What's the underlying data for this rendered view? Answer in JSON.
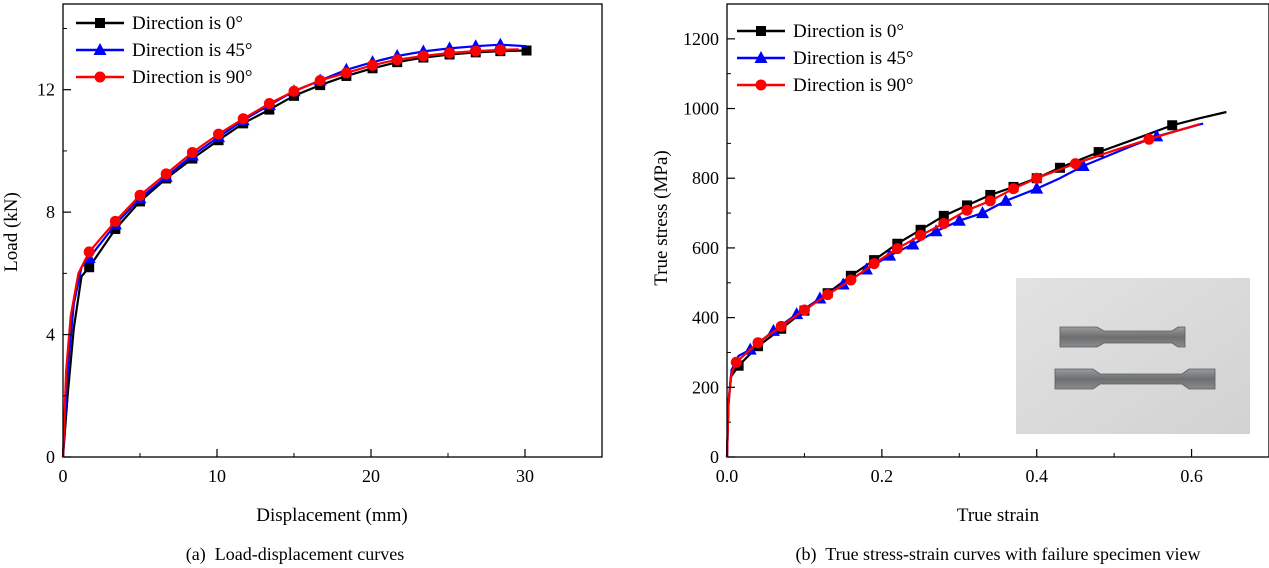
{
  "chart_data": [
    {
      "type": "line",
      "caption": "(a)  Load-displacement curves",
      "xlabel": "Displacement (mm)",
      "ylabel": "Load (kN)",
      "xlim": [
        0,
        35
      ],
      "ylim": [
        0,
        14.8
      ],
      "xticks": [
        0,
        10,
        20,
        30
      ],
      "yticks": [
        0,
        4,
        8,
        12
      ],
      "legend_position": "top-left",
      "series": [
        {
          "name": "Direction is 0°",
          "color": "#000000",
          "marker": "square",
          "x": [
            0,
            0.3,
            0.7,
            1.2,
            1.7,
            3.4,
            5.0,
            6.7,
            8.4,
            10.1,
            11.7,
            13.4,
            15.0,
            16.7,
            18.4,
            20.1,
            21.7,
            23.4,
            25.1,
            26.8,
            28.4,
            30.1
          ],
          "y": [
            0,
            2.0,
            4.2,
            5.9,
            6.2,
            7.45,
            8.35,
            9.1,
            9.75,
            10.35,
            10.9,
            11.35,
            11.8,
            12.15,
            12.45,
            12.7,
            12.9,
            13.05,
            13.15,
            13.22,
            13.26,
            13.28
          ],
          "marker_x": [
            1.7,
            3.4,
            5.0,
            6.7,
            8.4,
            10.1,
            11.7,
            13.4,
            15.0,
            16.7,
            18.4,
            20.1,
            21.7,
            23.4,
            25.1,
            26.8,
            28.4,
            30.1
          ],
          "marker_y": [
            6.2,
            7.45,
            8.35,
            9.1,
            9.75,
            10.35,
            10.9,
            11.35,
            11.8,
            12.15,
            12.45,
            12.7,
            12.9,
            13.05,
            13.15,
            13.22,
            13.26,
            13.28
          ]
        },
        {
          "name": "Direction is 45°",
          "color": "#0000ff",
          "marker": "triangle",
          "x": [
            0,
            0.3,
            0.7,
            1.2,
            1.7,
            3.4,
            5.0,
            6.7,
            8.4,
            10.1,
            11.7,
            13.4,
            15.0,
            16.7,
            18.4,
            20.1,
            21.7,
            23.4,
            25.1,
            26.8,
            28.4,
            30.1
          ],
          "y": [
            0,
            2.8,
            5.0,
            6.2,
            6.5,
            7.6,
            8.45,
            9.15,
            9.85,
            10.45,
            11.0,
            11.5,
            11.95,
            12.3,
            12.65,
            12.9,
            13.1,
            13.25,
            13.35,
            13.42,
            13.47,
            13.42
          ],
          "marker_x": [
            1.7,
            3.4,
            5.0,
            6.7,
            8.4,
            10.1,
            11.7,
            13.4,
            15.0,
            16.7,
            18.4,
            20.1,
            21.7,
            23.4,
            25.1,
            26.8,
            28.4
          ],
          "marker_y": [
            6.5,
            7.6,
            8.45,
            9.15,
            9.85,
            10.45,
            11.0,
            11.5,
            11.95,
            12.3,
            12.65,
            12.9,
            13.1,
            13.25,
            13.35,
            13.42,
            13.47
          ]
        },
        {
          "name": "Direction is 90°",
          "color": "#ff0000",
          "marker": "circle",
          "x": [
            0,
            0.2,
            0.5,
            1.0,
            1.7,
            3.4,
            5.0,
            6.7,
            8.4,
            10.1,
            11.7,
            13.4,
            15.0,
            16.7,
            18.4,
            20.1,
            21.7,
            23.4,
            25.1,
            26.8,
            28.4,
            29.6
          ],
          "y": [
            0,
            2.8,
            4.6,
            6.0,
            6.7,
            7.7,
            8.55,
            9.25,
            9.95,
            10.55,
            11.05,
            11.55,
            11.95,
            12.3,
            12.55,
            12.8,
            12.98,
            13.1,
            13.2,
            13.26,
            13.3,
            13.32
          ],
          "marker_x": [
            1.7,
            3.4,
            5.0,
            6.7,
            8.4,
            10.1,
            11.7,
            13.4,
            15.0,
            16.7,
            18.4,
            20.1,
            21.7,
            23.4,
            25.1,
            26.8,
            28.4
          ],
          "marker_y": [
            6.7,
            7.7,
            8.55,
            9.25,
            9.95,
            10.55,
            11.05,
            11.55,
            11.95,
            12.3,
            12.55,
            12.8,
            12.98,
            13.1,
            13.2,
            13.26,
            13.3
          ]
        }
      ]
    },
    {
      "type": "line",
      "caption": "(b)  True stress-strain curves with failure specimen view",
      "xlabel": "True strain",
      "ylabel": "True stress (MPa)",
      "xlim": [
        0,
        0.7
      ],
      "ylim": [
        0,
        1300
      ],
      "xticks": [
        0.0,
        0.2,
        0.4,
        0.6
      ],
      "xtick_labels": [
        "0.0",
        "0.2",
        "0.4",
        "0.6"
      ],
      "yticks": [
        0,
        200,
        400,
        600,
        800,
        1000,
        1200
      ],
      "legend_position": "top-left",
      "inset": "photo of two failed tensile specimens",
      "series": [
        {
          "name": "Direction is 0°",
          "color": "#000000",
          "marker": "square",
          "x": [
            0,
            0.002,
            0.005,
            0.015,
            0.04,
            0.07,
            0.1,
            0.13,
            0.16,
            0.19,
            0.22,
            0.25,
            0.28,
            0.31,
            0.34,
            0.37,
            0.4,
            0.43,
            0.48,
            0.53,
            0.575,
            0.61,
            0.645
          ],
          "y": [
            0,
            150,
            230,
            262,
            318,
            368,
            420,
            470,
            520,
            565,
            612,
            652,
            692,
            722,
            752,
            775,
            800,
            830,
            875,
            915,
            952,
            972,
            990
          ],
          "marker_x": [
            0.015,
            0.04,
            0.07,
            0.1,
            0.13,
            0.16,
            0.19,
            0.22,
            0.25,
            0.28,
            0.31,
            0.34,
            0.37,
            0.4,
            0.43,
            0.48,
            0.575
          ],
          "marker_y": [
            262,
            318,
            368,
            420,
            470,
            520,
            565,
            612,
            652,
            692,
            722,
            752,
            775,
            800,
            830,
            875,
            952
          ]
        },
        {
          "name": "Direction is 45°",
          "color": "#0000ff",
          "marker": "triangle",
          "x": [
            0,
            0.002,
            0.006,
            0.015,
            0.03,
            0.06,
            0.09,
            0.12,
            0.15,
            0.18,
            0.21,
            0.24,
            0.27,
            0.3,
            0.33,
            0.36,
            0.4,
            0.43,
            0.46,
            0.52,
            0.555,
            0.615
          ],
          "y": [
            0,
            160,
            250,
            290,
            308,
            362,
            410,
            455,
            495,
            538,
            578,
            610,
            648,
            678,
            700,
            735,
            770,
            800,
            835,
            890,
            920,
            957
          ],
          "marker_x": [
            0.03,
            0.06,
            0.09,
            0.12,
            0.15,
            0.18,
            0.21,
            0.24,
            0.27,
            0.3,
            0.33,
            0.36,
            0.4,
            0.46,
            0.555
          ],
          "marker_y": [
            308,
            362,
            410,
            455,
            495,
            538,
            578,
            610,
            648,
            678,
            700,
            735,
            770,
            835,
            920
          ]
        },
        {
          "name": "Direction is 90°",
          "color": "#ff0000",
          "marker": "circle",
          "x": [
            0,
            0.002,
            0.006,
            0.012,
            0.04,
            0.07,
            0.1,
            0.13,
            0.16,
            0.19,
            0.22,
            0.25,
            0.28,
            0.31,
            0.34,
            0.37,
            0.4,
            0.45,
            0.5,
            0.545,
            0.61
          ],
          "y": [
            0,
            160,
            240,
            272,
            328,
            375,
            422,
            466,
            508,
            555,
            598,
            636,
            670,
            708,
            735,
            770,
            800,
            842,
            880,
            912,
            955
          ],
          "marker_x": [
            0.012,
            0.04,
            0.07,
            0.1,
            0.13,
            0.16,
            0.19,
            0.22,
            0.25,
            0.28,
            0.31,
            0.34,
            0.37,
            0.4,
            0.45,
            0.545
          ],
          "marker_y": [
            272,
            328,
            375,
            422,
            466,
            508,
            555,
            598,
            636,
            670,
            708,
            735,
            770,
            800,
            842,
            912
          ]
        }
      ]
    }
  ]
}
